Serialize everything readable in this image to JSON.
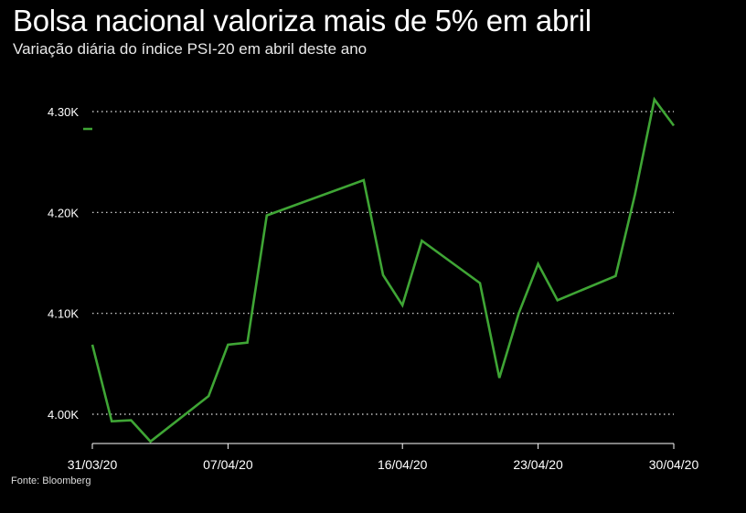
{
  "header": {
    "title": "Bolsa nacional valoriza mais de 5% em abril",
    "subtitle": "Variação diária do índice PSI-20 em abril deste ano"
  },
  "footer": {
    "source": "Fonte: Bloomberg"
  },
  "colors": {
    "background": "#000000",
    "line": "#3fa535",
    "grid": "#ffffff",
    "text": "#ffffff"
  },
  "chart_data": {
    "type": "line",
    "title": "Bolsa nacional valoriza mais de 5% em abril",
    "subtitle": "Variação diária do índice PSI-20 em abril deste ano",
    "xlabel": "",
    "ylabel": "",
    "ylim": [
      3970,
      4310
    ],
    "yticks": [
      4000,
      4100,
      4200,
      4300
    ],
    "ytick_labels": [
      "4.00K",
      "4.10K",
      "4.20K",
      "4.30K"
    ],
    "xtick_labels": [
      "31/03/20",
      "07/04/20",
      "16/04/20",
      "23/04/20",
      "30/04/20"
    ],
    "xtick_dates": [
      "2020-03-31",
      "2020-04-07",
      "2020-04-16",
      "2020-04-23",
      "2020-04-30"
    ],
    "grid": "horizontal dotted",
    "series": [
      {
        "x": [
          "2020-03-31",
          "2020-04-01",
          "2020-04-02",
          "2020-04-03",
          "2020-04-06",
          "2020-04-07",
          "2020-04-08",
          "2020-04-09",
          "2020-04-14",
          "2020-04-15",
          "2020-04-16",
          "2020-04-17",
          "2020-04-20",
          "2020-04-21",
          "2020-04-22",
          "2020-04-23",
          "2020-04-24",
          "2020-04-27",
          "2020-04-28",
          "2020-04-29",
          "2020-04-30"
        ],
        "y": [
          4069,
          3993,
          3994,
          3973,
          4018,
          4069,
          4071,
          4197,
          4232,
          4138,
          4108,
          4172,
          4130,
          4036,
          4100,
          4149,
          4113,
          4137,
          4218,
          4312,
          4286
        ]
      }
    ],
    "legend_marker_color": "#3fa535"
  }
}
